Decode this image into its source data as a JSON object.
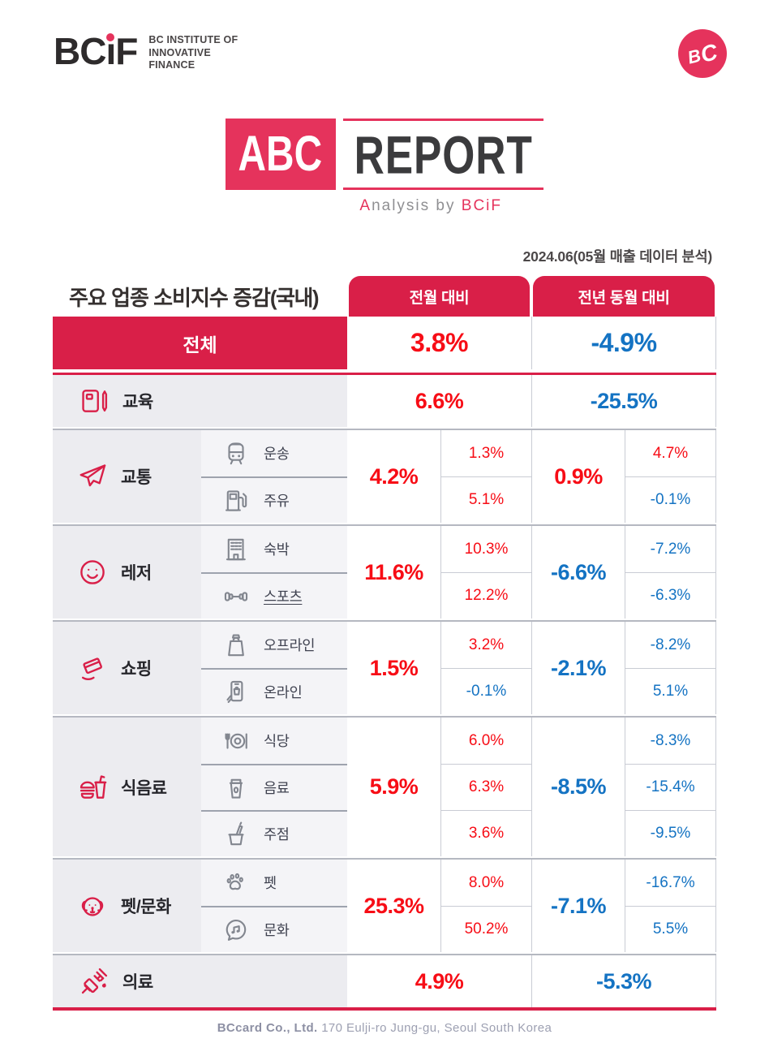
{
  "colors": {
    "brand_red": "#D91F48",
    "logo_pink": "#E5335C",
    "value_red": "#F70D16",
    "value_blue": "#1473C3"
  },
  "brand": {
    "wordmark": "BCiF",
    "wordmark_pre": "BC",
    "wordmark_i": "ı",
    "wordmark_post": "F",
    "sub_lines": [
      "BC INSTITUTE OF",
      "INNOVATIVE",
      "FINANCE"
    ],
    "badge_b": "B",
    "badge_c": "C"
  },
  "report_logo": {
    "abc": "ABC",
    "report": "REPORT",
    "tagline_a": "A",
    "tagline_mid": "nalysis by ",
    "tagline_brand": "BCiF"
  },
  "meta": {
    "date_note": "2024.06(05월 매출 데이터 분석)"
  },
  "table": {
    "title_main": "주요 업종 소비지수 증감",
    "title_paren": "(국내)",
    "col_headers": [
      "전월 대비",
      "전년 동월 대비"
    ],
    "total": {
      "label": "전체",
      "mom": {
        "v": "3.8%",
        "c": "red"
      },
      "yoy": {
        "v": "-4.9%",
        "c": "blue"
      }
    },
    "rows": [
      {
        "label": "교육",
        "icon": "book-pencil",
        "mom": {
          "v": "6.6%",
          "c": "red"
        },
        "yoy": {
          "v": "-25.5%",
          "c": "blue"
        },
        "subs": []
      },
      {
        "label": "교통",
        "icon": "airplane",
        "mom": {
          "v": "4.2%",
          "c": "red"
        },
        "yoy": {
          "v": "0.9%",
          "c": "red"
        },
        "subs": [
          {
            "label": "운송",
            "icon": "train",
            "mom": {
              "v": "1.3%",
              "c": "red"
            },
            "yoy": {
              "v": "4.7%",
              "c": "red"
            }
          },
          {
            "label": "주유",
            "icon": "fuel-pump",
            "mom": {
              "v": "5.1%",
              "c": "red"
            },
            "yoy": {
              "v": "-0.1%",
              "c": "blue"
            }
          }
        ]
      },
      {
        "label": "레저",
        "icon": "smiley",
        "mom": {
          "v": "11.6%",
          "c": "red"
        },
        "yoy": {
          "v": "-6.6%",
          "c": "blue"
        },
        "subs": [
          {
            "label": "숙박",
            "icon": "building",
            "mom": {
              "v": "10.3%",
              "c": "red"
            },
            "yoy": {
              "v": "-7.2%",
              "c": "blue"
            }
          },
          {
            "label": "스포츠",
            "icon": "dumbbell",
            "underline": true,
            "mom": {
              "v": "12.2%",
              "c": "red"
            },
            "yoy": {
              "v": "-6.3%",
              "c": "blue"
            }
          }
        ]
      },
      {
        "label": "쇼핑",
        "icon": "hand-card",
        "mom": {
          "v": "1.5%",
          "c": "red"
        },
        "yoy": {
          "v": "-2.1%",
          "c": "blue"
        },
        "subs": [
          {
            "label": "오프라인",
            "icon": "shopping-bag",
            "mom": {
              "v": "3.2%",
              "c": "red"
            },
            "yoy": {
              "v": "-8.2%",
              "c": "blue"
            }
          },
          {
            "label": "온라인",
            "icon": "mobile-shopping",
            "mom": {
              "v": "-0.1%",
              "c": "blue"
            },
            "yoy": {
              "v": "5.1%",
              "c": "blue"
            }
          }
        ]
      },
      {
        "label": "식음료",
        "icon": "burger-drink",
        "mom": {
          "v": "5.9%",
          "c": "red"
        },
        "yoy": {
          "v": "-8.5%",
          "c": "blue"
        },
        "subs": [
          {
            "label": "식당",
            "icon": "plate-cutlery",
            "mom": {
              "v": "6.0%",
              "c": "red"
            },
            "yoy": {
              "v": "-8.3%",
              "c": "blue"
            }
          },
          {
            "label": "음료",
            "icon": "cup",
            "mom": {
              "v": "6.3%",
              "c": "red"
            },
            "yoy": {
              "v": "-15.4%",
              "c": "blue"
            }
          },
          {
            "label": "주점",
            "icon": "wine-bucket",
            "mom": {
              "v": "3.6%",
              "c": "red"
            },
            "yoy": {
              "v": "-9.5%",
              "c": "blue"
            }
          }
        ]
      },
      {
        "label": "펫/문화",
        "icon": "dog-face",
        "mom": {
          "v": "25.3%",
          "c": "red"
        },
        "yoy": {
          "v": "-7.1%",
          "c": "blue"
        },
        "subs": [
          {
            "label": "펫",
            "icon": "paw",
            "mom": {
              "v": "8.0%",
              "c": "red"
            },
            "yoy": {
              "v": "-16.7%",
              "c": "blue"
            }
          },
          {
            "label": "문화",
            "icon": "music-bubble",
            "mom": {
              "v": "50.2%",
              "c": "red"
            },
            "yoy": {
              "v": "5.5%",
              "c": "blue"
            }
          }
        ]
      },
      {
        "label": "의료",
        "icon": "syringe",
        "mom": {
          "v": "4.9%",
          "c": "red"
        },
        "yoy": {
          "v": "-5.3%",
          "c": "blue"
        },
        "subs": []
      }
    ]
  },
  "footer": {
    "company": "BCcard Co., Ltd.",
    "address": "170 Eulji-ro Jung-gu, Seoul South Korea"
  }
}
